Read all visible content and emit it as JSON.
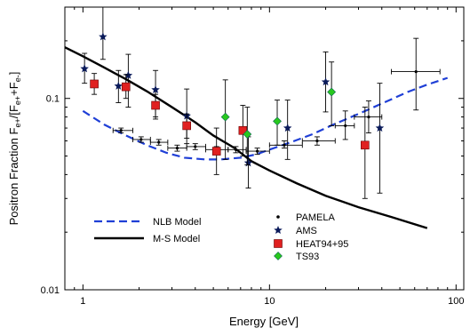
{
  "chart_data": {
    "type": "scatter",
    "xlabel": "Energy [GeV]",
    "ylabel": {
      "main": "Positron Fraction F",
      "sub1": "e+",
      "mid": "/[F",
      "sub2": "e+",
      "mid2": "+F",
      "sub3": "e-",
      "end": "]"
    },
    "xscale": "log",
    "yscale": "log",
    "xlim": [
      0.8,
      110
    ],
    "ylim": [
      0.01,
      0.3
    ],
    "xticks": [
      {
        "value": 1,
        "label": "1"
      },
      {
        "value": 10,
        "label": "10"
      },
      {
        "value": 100,
        "label": "100"
      }
    ],
    "yticks": [
      {
        "value": 0.01,
        "label": "0.01"
      },
      {
        "value": 0.1,
        "label": "0.1"
      }
    ],
    "grid": false,
    "legend_position": "bottom",
    "series": [
      {
        "name": "NLB Model",
        "kind": "line",
        "style": "dashed",
        "color": "#1f3fd6",
        "points": [
          [
            1.0,
            0.086
          ],
          [
            1.3,
            0.073
          ],
          [
            1.7,
            0.064
          ],
          [
            2.2,
            0.057
          ],
          [
            2.8,
            0.052
          ],
          [
            3.5,
            0.049
          ],
          [
            4.5,
            0.048
          ],
          [
            5.5,
            0.048
          ],
          [
            7,
            0.049
          ],
          [
            8.5,
            0.051
          ],
          [
            10,
            0.054
          ],
          [
            13,
            0.059
          ],
          [
            17,
            0.065
          ],
          [
            22,
            0.073
          ],
          [
            30,
            0.083
          ],
          [
            40,
            0.094
          ],
          [
            55,
            0.108
          ],
          [
            70,
            0.118
          ],
          [
            90,
            0.128
          ]
        ]
      },
      {
        "name": "M-S Model",
        "kind": "line",
        "style": "solid",
        "color": "#000000",
        "points": [
          [
            0.8,
            0.185
          ],
          [
            1.0,
            0.166
          ],
          [
            1.3,
            0.145
          ],
          [
            1.7,
            0.126
          ],
          [
            2.2,
            0.109
          ],
          [
            3,
            0.09
          ],
          [
            4,
            0.075
          ],
          [
            5,
            0.064
          ],
          [
            6.5,
            0.055
          ],
          [
            8,
            0.047
          ],
          [
            10,
            0.042
          ],
          [
            14,
            0.036
          ],
          [
            20,
            0.031
          ],
          [
            30,
            0.027
          ],
          [
            45,
            0.024
          ],
          [
            70,
            0.021
          ]
        ]
      },
      {
        "name": "PAMELA",
        "kind": "points",
        "marker": "dot",
        "color": "#000000",
        "points": [
          {
            "x": 1.6,
            "y": 0.068,
            "xlo": 1.45,
            "xhi": 1.85,
            "ylo": 0.066,
            "yhi": 0.07
          },
          {
            "x": 2.05,
            "y": 0.061,
            "xlo": 1.85,
            "xhi": 2.3,
            "ylo": 0.059,
            "yhi": 0.063
          },
          {
            "x": 2.55,
            "y": 0.059,
            "xlo": 2.3,
            "xhi": 2.85,
            "ylo": 0.057,
            "yhi": 0.061
          },
          {
            "x": 3.2,
            "y": 0.055,
            "xlo": 2.85,
            "xhi": 3.6,
            "ylo": 0.053,
            "yhi": 0.057
          },
          {
            "x": 4.0,
            "y": 0.056,
            "xlo": 3.6,
            "xhi": 4.55,
            "ylo": 0.054,
            "yhi": 0.058
          },
          {
            "x": 5.2,
            "y": 0.054,
            "xlo": 4.55,
            "xhi": 6.0,
            "ylo": 0.052,
            "yhi": 0.056
          },
          {
            "x": 6.6,
            "y": 0.054,
            "xlo": 6.0,
            "xhi": 7.5,
            "ylo": 0.052,
            "yhi": 0.056
          },
          {
            "x": 8.6,
            "y": 0.053,
            "xlo": 7.5,
            "xhi": 10.0,
            "ylo": 0.051,
            "yhi": 0.055
          },
          {
            "x": 12.0,
            "y": 0.057,
            "xlo": 10.0,
            "xhi": 15.0,
            "ylo": 0.055,
            "yhi": 0.06
          },
          {
            "x": 18.0,
            "y": 0.06,
            "xlo": 15.0,
            "xhi": 22.5,
            "ylo": 0.057,
            "yhi": 0.063
          },
          {
            "x": 25.5,
            "y": 0.072,
            "xlo": 22.5,
            "xhi": 28.5,
            "ylo": 0.061,
            "yhi": 0.086
          },
          {
            "x": 34.0,
            "y": 0.08,
            "xlo": 28.5,
            "xhi": 40.0,
            "ylo": 0.066,
            "yhi": 0.097
          },
          {
            "x": 61.0,
            "y": 0.138,
            "xlo": 45.0,
            "xhi": 82.0,
            "ylo": 0.087,
            "yhi": 0.206
          }
        ]
      },
      {
        "name": "AMS",
        "kind": "points",
        "marker": "star",
        "color": "#0a1a5a",
        "points": [
          {
            "x": 1.02,
            "y": 0.143,
            "ylo": 0.12,
            "yhi": 0.172
          },
          {
            "x": 1.28,
            "y": 0.21,
            "ylo": 0.16,
            "yhi": 0.3
          },
          {
            "x": 1.55,
            "y": 0.116,
            "ylo": 0.095,
            "yhi": 0.14
          },
          {
            "x": 1.75,
            "y": 0.132,
            "ylo": 0.09,
            "yhi": 0.17
          },
          {
            "x": 2.45,
            "y": 0.111,
            "ylo": 0.078,
            "yhi": 0.14
          },
          {
            "x": 3.6,
            "y": 0.081,
            "ylo": 0.058,
            "yhi": 0.112
          },
          {
            "x": 7.7,
            "y": 0.046,
            "ylo": 0.034,
            "yhi": 0.063
          },
          {
            "x": 12.5,
            "y": 0.07,
            "ylo": 0.048,
            "yhi": 0.098
          },
          {
            "x": 20.0,
            "y": 0.122,
            "ylo": 0.085,
            "yhi": 0.175
          },
          {
            "x": 39.0,
            "y": 0.07,
            "ylo": 0.032,
            "yhi": 0.12
          }
        ]
      },
      {
        "name": "HEAT94+95",
        "kind": "points",
        "marker": "square",
        "color": "#e02020",
        "points": [
          {
            "x": 1.15,
            "y": 0.119,
            "ylo": 0.105,
            "yhi": 0.135
          },
          {
            "x": 1.7,
            "y": 0.115,
            "ylo": 0.1,
            "yhi": 0.133
          },
          {
            "x": 2.45,
            "y": 0.092,
            "ylo": 0.08,
            "yhi": 0.105
          },
          {
            "x": 3.6,
            "y": 0.072,
            "ylo": 0.062,
            "yhi": 0.083
          },
          {
            "x": 5.2,
            "y": 0.053,
            "ylo": 0.04,
            "yhi": 0.07
          },
          {
            "x": 7.2,
            "y": 0.068,
            "ylo": 0.05,
            "yhi": 0.092
          },
          {
            "x": 32.5,
            "y": 0.057,
            "ylo": 0.03,
            "yhi": 0.09
          }
        ]
      },
      {
        "name": "TS93",
        "kind": "points",
        "marker": "diamond",
        "color": "#28c81e",
        "points": [
          {
            "x": 5.8,
            "y": 0.08,
            "ylo": 0.048,
            "yhi": 0.125
          },
          {
            "x": 7.6,
            "y": 0.065,
            "ylo": 0.045,
            "yhi": 0.09
          },
          {
            "x": 11.0,
            "y": 0.076,
            "ylo": 0.057,
            "yhi": 0.098
          },
          {
            "x": 21.5,
            "y": 0.108,
            "ylo": 0.072,
            "yhi": 0.155
          }
        ]
      }
    ]
  }
}
